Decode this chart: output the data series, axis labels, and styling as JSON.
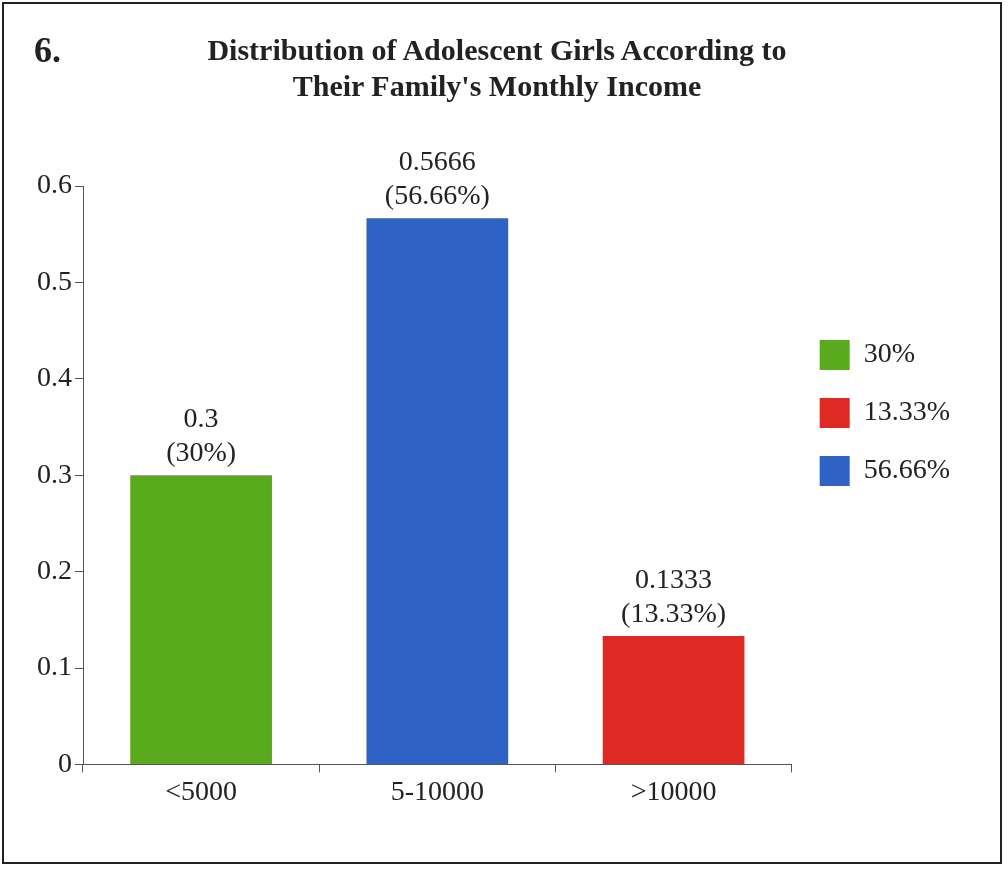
{
  "chart_data": {
    "type": "bar",
    "title": "Distribution of Adolescent Girls According to Their Family's Monthly Income",
    "annotations": [
      "6."
    ],
    "categories": [
      "<5000",
      "5-10000",
      ">10000"
    ],
    "series": [
      {
        "name": "30%",
        "color": "#5aaa1e",
        "values": [
          0.3,
          null,
          null
        ],
        "value_labels": [
          "0.3\n(30%)",
          null,
          null
        ]
      },
      {
        "name": "13.33%",
        "color": "#dd2a22",
        "values": [
          null,
          null,
          0.1333
        ],
        "value_labels": [
          null,
          null,
          "0.1333\n(13.33%)"
        ]
      },
      {
        "name": "56.66%",
        "color": "#2e62c4",
        "values": [
          null,
          0.5666,
          null
        ],
        "value_labels": [
          null,
          "0.5666\n(56.66%)",
          null
        ]
      }
    ],
    "ylim": [
      0,
      0.6
    ],
    "yticks": [
      0,
      0.1,
      0.2,
      0.3,
      0.4,
      0.5,
      0.6
    ],
    "grid": false,
    "legend": "right"
  }
}
